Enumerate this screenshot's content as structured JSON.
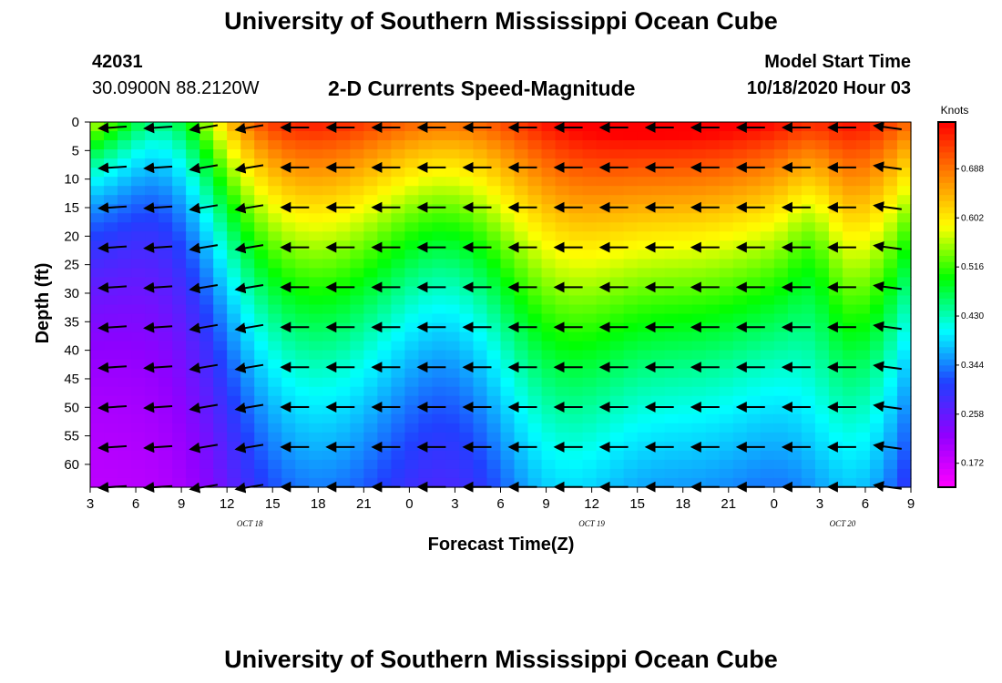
{
  "header": {
    "title_top": "University of Southern Mississippi Ocean Cube",
    "title_bottom": "University of Southern Mississippi Ocean Cube",
    "station_id": "42031",
    "station_coords": "30.0900N 88.2120W",
    "model_start_label": "Model Start Time",
    "model_start_value": "10/18/2020 Hour 03"
  },
  "chart_data": {
    "type": "heatmap",
    "title": "2-D Currents Speed-Magnitude",
    "xlabel": "Forecast Time(Z)",
    "ylabel": "Depth (ft)",
    "x_tick_labels": [
      "3",
      "6",
      "9",
      "12",
      "15",
      "18",
      "21",
      "0",
      "3",
      "6",
      "9",
      "12",
      "15",
      "18",
      "21",
      "0",
      "3",
      "6",
      "9"
    ],
    "x_range_hours": [
      0,
      54
    ],
    "date_labels": [
      {
        "text": "OCT 18",
        "at_hour": 10.5
      },
      {
        "text": "OCT 19",
        "at_hour": 33
      },
      {
        "text": "OCT 20",
        "at_hour": 49.5
      }
    ],
    "y_ticks": [
      0,
      5,
      10,
      15,
      20,
      25,
      30,
      35,
      40,
      45,
      50,
      55,
      60
    ],
    "y_range": [
      0,
      64
    ],
    "y_inverted": true,
    "colorbar": {
      "title": "Knots",
      "ticks": [
        "0.172",
        "0.258",
        "0.344",
        "0.430",
        "0.516",
        "0.602",
        "0.688"
      ],
      "min": 0.13,
      "max": 0.77,
      "colors": [
        "#ff00ff",
        "#9000ff",
        "#2040ff",
        "#00ffff",
        "#00ff00",
        "#ffff00",
        "#ff8000",
        "#ff0000"
      ]
    },
    "grid": false,
    "arrows": "black current vectors, predominantly pointing west (leftward), slightly downward near 6-9Z Oct 18"
  }
}
